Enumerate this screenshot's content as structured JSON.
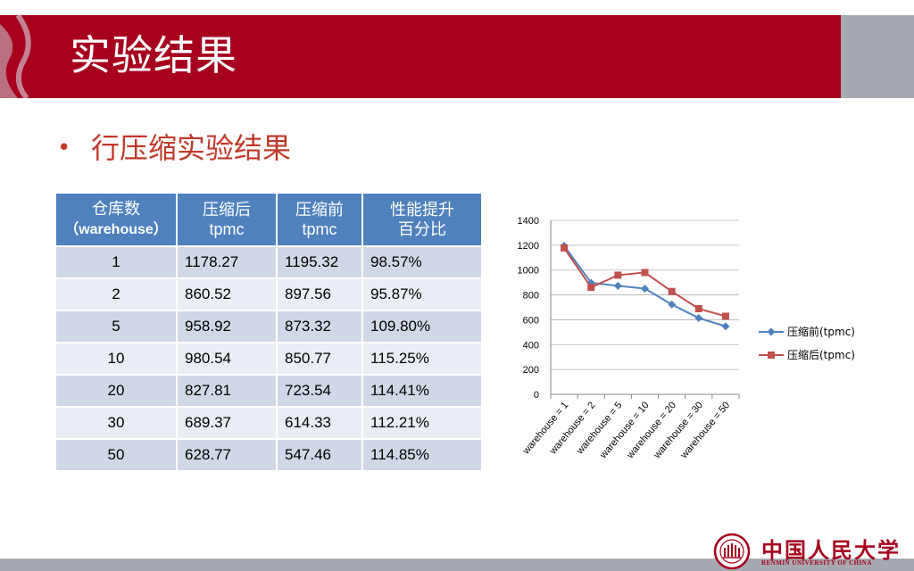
{
  "title": "实验结果",
  "bullet": "行压缩实验结果",
  "table": {
    "headers": [
      {
        "line1": "仓库数",
        "line2": "（warehouse）"
      },
      {
        "line1": "压缩后",
        "line2": "tpmc"
      },
      {
        "line1": "压缩前",
        "line2": "tpmc"
      },
      {
        "line1": "性能提升",
        "line2": "百分比"
      }
    ],
    "rows": [
      [
        "1",
        "1178.27",
        "1195.32",
        "98.57%"
      ],
      [
        "2",
        "860.52",
        "897.56",
        "95.87%"
      ],
      [
        "5",
        "958.92",
        "873.32",
        "109.80%"
      ],
      [
        "10",
        "980.54",
        "850.77",
        "115.25%"
      ],
      [
        "20",
        "827.81",
        "723.54",
        "114.41%"
      ],
      [
        "30",
        "689.37",
        "614.33",
        "112.21%"
      ],
      [
        "50",
        "628.77",
        "547.46",
        "114.85%"
      ]
    ]
  },
  "chart_data": {
    "type": "line",
    "categories": [
      "warehouse = 1",
      "warehouse = 2",
      "warehouse = 5",
      "warehouse = 10",
      "warehouse = 20",
      "warehouse = 30",
      "warehouse = 50"
    ],
    "series": [
      {
        "name": "压缩前(tpmc)",
        "color": "#4f81bd",
        "marker": "diamond",
        "values": [
          1195.32,
          897.56,
          873.32,
          850.77,
          723.54,
          614.33,
          547.46
        ]
      },
      {
        "name": "压缩后(tpmc)",
        "color": "#c0504d",
        "marker": "square",
        "values": [
          1178.27,
          860.52,
          958.92,
          980.54,
          827.81,
          689.37,
          628.77
        ]
      }
    ],
    "y_ticks": [
      "0",
      "200",
      "400",
      "600",
      "800",
      "1000",
      "1200",
      "1400"
    ],
    "ylim": [
      0,
      1400
    ],
    "grid": true,
    "legend": "right"
  },
  "logo": {
    "cn": "中国人民大学",
    "en": "RENMIN UNIVERSITY OF CHINA",
    "emblem": "university-seal-icon"
  },
  "colors": {
    "brand_red": "#a6001e",
    "accent_red": "#c0392b",
    "header_blue": "#4f81bd"
  }
}
